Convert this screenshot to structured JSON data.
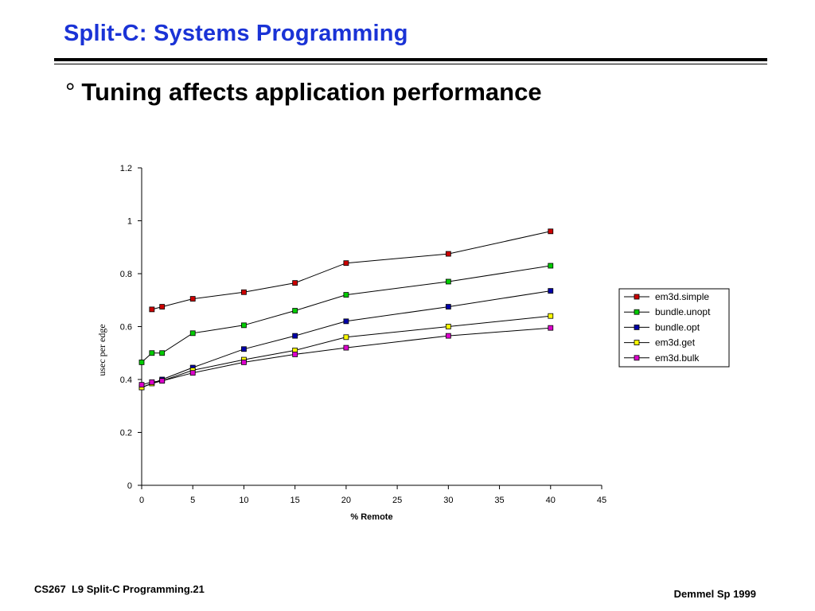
{
  "slide": {
    "title": "Split-C: Systems Programming",
    "bullet_mark": "°",
    "bullet": "Tuning affects application performance",
    "footer_left": "CS267  L9 Split-C Programming.21",
    "footer_right": "Demmel Sp 1999"
  },
  "chart_data": {
    "type": "line",
    "title": "",
    "xlabel": "% Remote",
    "ylabel": "usec per edge",
    "xlim": [
      0,
      45
    ],
    "ylim": [
      0,
      1.2
    ],
    "xticks": [
      0,
      5,
      10,
      15,
      20,
      25,
      30,
      35,
      40,
      45
    ],
    "xtick_labels": [
      "0",
      "5",
      "10",
      "15",
      "20",
      "25",
      "30",
      "35",
      "40",
      "45"
    ],
    "yticks": [
      0,
      0.2,
      0.4,
      0.6,
      0.8,
      1,
      1.2
    ],
    "ytick_labels": [
      "0",
      "0.2",
      "0.4",
      "0.6",
      "0.8",
      "1",
      "1.2"
    ],
    "grid": false,
    "legend_position": "right",
    "series": [
      {
        "name": "em3d.simple",
        "color": "#cc0000",
        "x": [
          1,
          2,
          5,
          10,
          15,
          20,
          30,
          40
        ],
        "y": [
          0.665,
          0.675,
          0.705,
          0.73,
          0.765,
          0.84,
          0.875,
          0.96
        ]
      },
      {
        "name": "bundle.unopt",
        "color": "#00cc00",
        "x": [
          0,
          1,
          2,
          5,
          10,
          15,
          20,
          30,
          40
        ],
        "y": [
          0.465,
          0.5,
          0.5,
          0.575,
          0.605,
          0.66,
          0.72,
          0.77,
          0.83
        ]
      },
      {
        "name": "bundle.opt",
        "color": "#0000aa",
        "x": [
          0,
          2,
          5,
          10,
          15,
          20,
          30,
          40
        ],
        "y": [
          0.37,
          0.4,
          0.445,
          0.515,
          0.565,
          0.62,
          0.675,
          0.735
        ]
      },
      {
        "name": "em3d.get",
        "color": "#ffff00",
        "x": [
          0,
          1,
          2,
          5,
          10,
          15,
          20,
          30,
          40
        ],
        "y": [
          0.37,
          0.385,
          0.395,
          0.435,
          0.475,
          0.51,
          0.56,
          0.6,
          0.64
        ]
      },
      {
        "name": "em3d.bulk",
        "color": "#dd00cc",
        "x": [
          0,
          1,
          2,
          5,
          10,
          15,
          20,
          30,
          40
        ],
        "y": [
          0.38,
          0.39,
          0.395,
          0.425,
          0.465,
          0.495,
          0.52,
          0.565,
          0.595
        ]
      }
    ]
  }
}
